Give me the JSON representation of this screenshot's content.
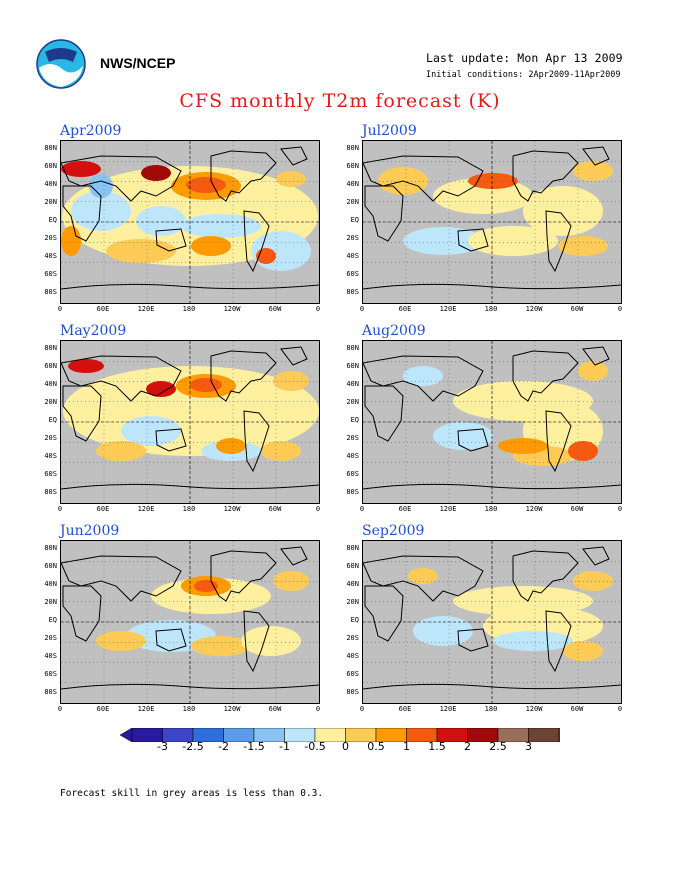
{
  "header": {
    "org": "NWS/NCEP",
    "last_update": "Last update: Mon Apr 13 2009",
    "initial_conditions": "Initial conditions: 2Apr2009-11Apr2009",
    "title": "CFS monthly T2m forecast (K)"
  },
  "panels": [
    {
      "label": "Apr2009"
    },
    {
      "label": "Jul2009"
    },
    {
      "label": "May2009"
    },
    {
      "label": "Aug2009"
    },
    {
      "label": "Jun2009"
    },
    {
      "label": "Sep2009"
    }
  ],
  "lat_ticks": [
    "80N",
    "60N",
    "40N",
    "20N",
    "EQ",
    "20S",
    "40S",
    "60S",
    "80S"
  ],
  "lon_ticks": [
    "0",
    "60E",
    "120E",
    "180",
    "120W",
    "60W",
    "0"
  ],
  "colorbar": {
    "labels": [
      "-3",
      "-2.5",
      "-2",
      "-1.5",
      "-1",
      "-0.5",
      "0",
      "0.5",
      "1",
      "1.5",
      "2",
      "2.5",
      "3"
    ],
    "colors": [
      "#2a1aa0",
      "#3e45c9",
      "#2f6fdd",
      "#5b9be8",
      "#89c2f4",
      "#bde6fb",
      "#fff0a0",
      "#ffcb57",
      "#ff9a00",
      "#f55a10",
      "#d4100f",
      "#a00a0a",
      "#9a6e5e",
      "#6b4433"
    ]
  },
  "footnote": "Forecast skill in grey areas is less than 0.3."
}
